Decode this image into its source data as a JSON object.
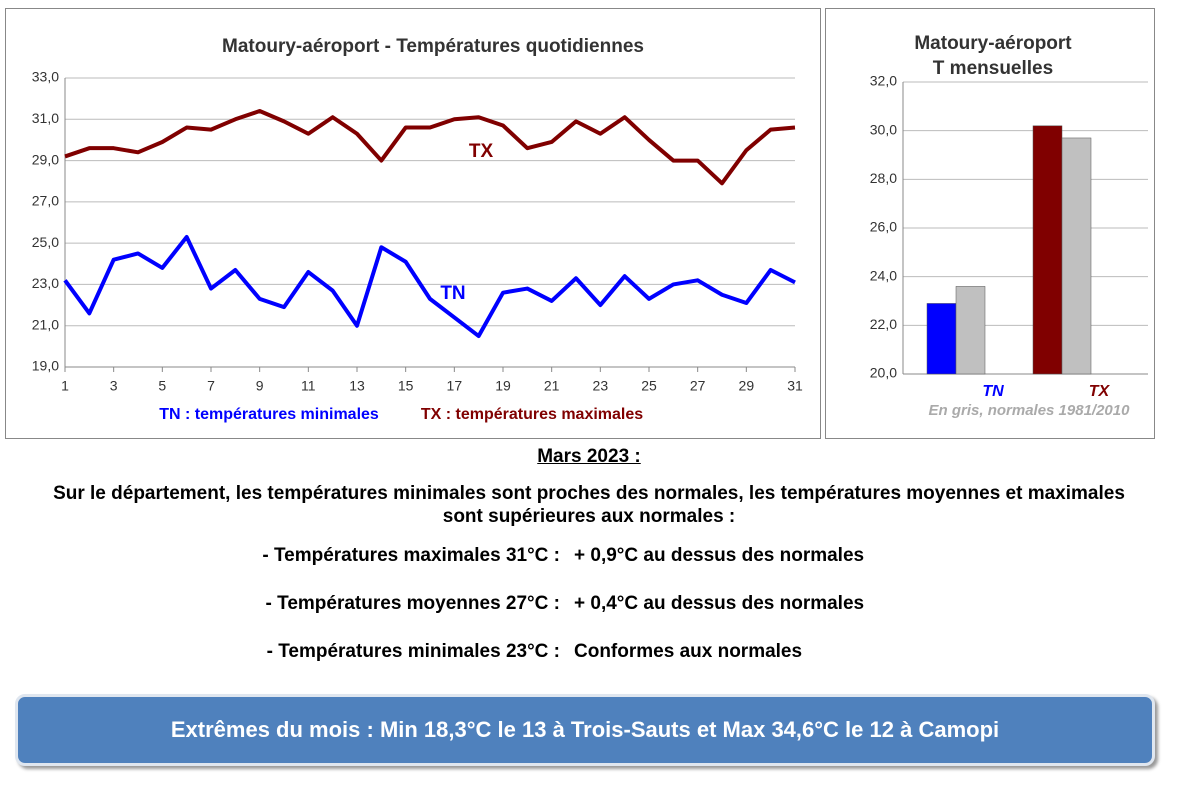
{
  "chart_data": [
    {
      "type": "line",
      "title": "Matoury-aéroport - Températures quotidiennes",
      "x": [
        1,
        2,
        3,
        4,
        5,
        6,
        7,
        8,
        9,
        10,
        11,
        12,
        13,
        14,
        15,
        16,
        17,
        18,
        19,
        20,
        21,
        22,
        23,
        24,
        25,
        26,
        27,
        28,
        29,
        30,
        31
      ],
      "series": [
        {
          "name": "TN : températures minimales",
          "color": "#0000ff",
          "label": "TN",
          "values": [
            23.2,
            21.6,
            24.2,
            24.5,
            23.8,
            25.3,
            22.8,
            23.7,
            22.3,
            21.9,
            23.6,
            22.7,
            21.0,
            24.8,
            24.1,
            22.3,
            21.4,
            20.5,
            22.6,
            22.8,
            22.2,
            23.3,
            22.0,
            23.4,
            22.3,
            23.0,
            23.2,
            22.5,
            22.1,
            23.7,
            23.1
          ]
        },
        {
          "name": "TX : températures maximales",
          "color": "#800000",
          "label": "TX",
          "values": [
            29.2,
            29.6,
            29.6,
            29.4,
            29.9,
            30.6,
            30.5,
            31.0,
            31.4,
            30.9,
            30.3,
            31.1,
            30.3,
            29.0,
            30.6,
            30.6,
            31.0,
            31.1,
            30.7,
            29.6,
            29.9,
            30.9,
            30.3,
            31.1,
            30.0,
            29.0,
            29.0,
            27.9,
            29.5,
            30.5,
            30.6
          ]
        }
      ],
      "xlim": [
        1,
        31
      ],
      "xticks": [
        1,
        3,
        5,
        7,
        9,
        11,
        13,
        15,
        17,
        19,
        21,
        23,
        25,
        27,
        29,
        31
      ],
      "ylim": [
        19,
        33
      ],
      "yticks": [
        {
          "value": 19,
          "label": "19,0"
        },
        {
          "value": 21,
          "label": "21,0"
        },
        {
          "value": 23,
          "label": "23,0"
        },
        {
          "value": 25,
          "label": "25,0"
        },
        {
          "value": 27,
          "label": "27,0"
        },
        {
          "value": 29,
          "label": "29,0"
        },
        {
          "value": 31,
          "label": "31,0"
        },
        {
          "value": 33,
          "label": "33,0"
        }
      ],
      "grid": true
    },
    {
      "type": "bar",
      "title": [
        "Matoury-aéroport",
        "T mensuelles"
      ],
      "categories": [
        "TN",
        "TX"
      ],
      "series": [
        {
          "colors": [
            "#0000ff",
            "#800000"
          ],
          "values": [
            22.9,
            30.2
          ]
        },
        {
          "color": "#c0c0c0",
          "values": [
            23.6,
            29.7
          ]
        }
      ],
      "ylim": [
        20,
        32
      ],
      "yticks": [
        {
          "value": 20,
          "label": "20,0"
        },
        {
          "value": 22,
          "label": "22,0"
        },
        {
          "value": 24,
          "label": "24,0"
        },
        {
          "value": 26,
          "label": "26,0"
        },
        {
          "value": 28,
          "label": "28,0"
        },
        {
          "value": 30,
          "label": "30,0"
        },
        {
          "value": 32,
          "label": "32,0"
        }
      ],
      "grid": true,
      "note": "En gris, normales 1981/2010"
    }
  ],
  "heading": "Mars 2023 :",
  "summary": "Sur le département, les températures minimales sont proches des normales, les températures moyennes et maximales sont supérieures aux normales  :",
  "items": [
    [
      "- Températures maximales 31°C :",
      "+ 0,9°C au dessus des normales"
    ],
    [
      "- Températures moyennes 27°C :",
      "+ 0,4°C au dessus des normales"
    ],
    [
      "- Températures minimales 23°C :",
      "Conformes aux normales"
    ]
  ],
  "banner": "Extrêmes du mois : Min 18,3°C le 13 à Trois-Sauts et Max 34,6°C le 12 à Camopi"
}
